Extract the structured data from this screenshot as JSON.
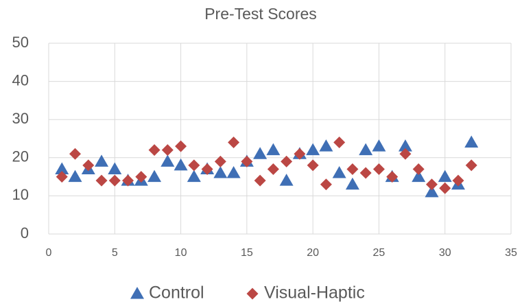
{
  "chart_data": {
    "type": "scatter",
    "title": "Pre-Test Scores",
    "x": [
      1,
      2,
      3,
      4,
      5,
      6,
      7,
      8,
      9,
      10,
      11,
      12,
      13,
      14,
      15,
      16,
      17,
      18,
      19,
      20,
      21,
      22,
      23,
      24,
      25,
      26,
      27,
      28,
      29,
      30,
      31,
      32
    ],
    "series": [
      {
        "name": "Control",
        "color": "#3f6fb5",
        "marker": "triangle",
        "values": [
          17,
          15,
          17,
          19,
          17,
          14,
          14,
          15,
          19,
          18,
          15,
          17,
          16,
          16,
          19,
          21,
          22,
          14,
          21,
          22,
          23,
          16,
          13,
          22,
          23,
          15,
          23,
          15,
          11,
          15,
          13,
          24
        ]
      },
      {
        "name": "Visual-Haptic",
        "color": "#bb4744",
        "marker": "diamond",
        "values": [
          15,
          21,
          18,
          14,
          14,
          14,
          15,
          22,
          22,
          23,
          18,
          17,
          19,
          24,
          19,
          14,
          17,
          19,
          21,
          18,
          13,
          24,
          17,
          16,
          17,
          15,
          21,
          17,
          13,
          12,
          14,
          18
        ]
      }
    ],
    "xlim": [
      0,
      35
    ],
    "xticks": [
      0,
      5,
      10,
      15,
      20,
      25,
      30,
      35
    ],
    "ylim": [
      0,
      50
    ],
    "yticks": [
      0,
      10,
      20,
      30,
      40,
      50
    ],
    "grid": true,
    "legend": "bottom"
  }
}
